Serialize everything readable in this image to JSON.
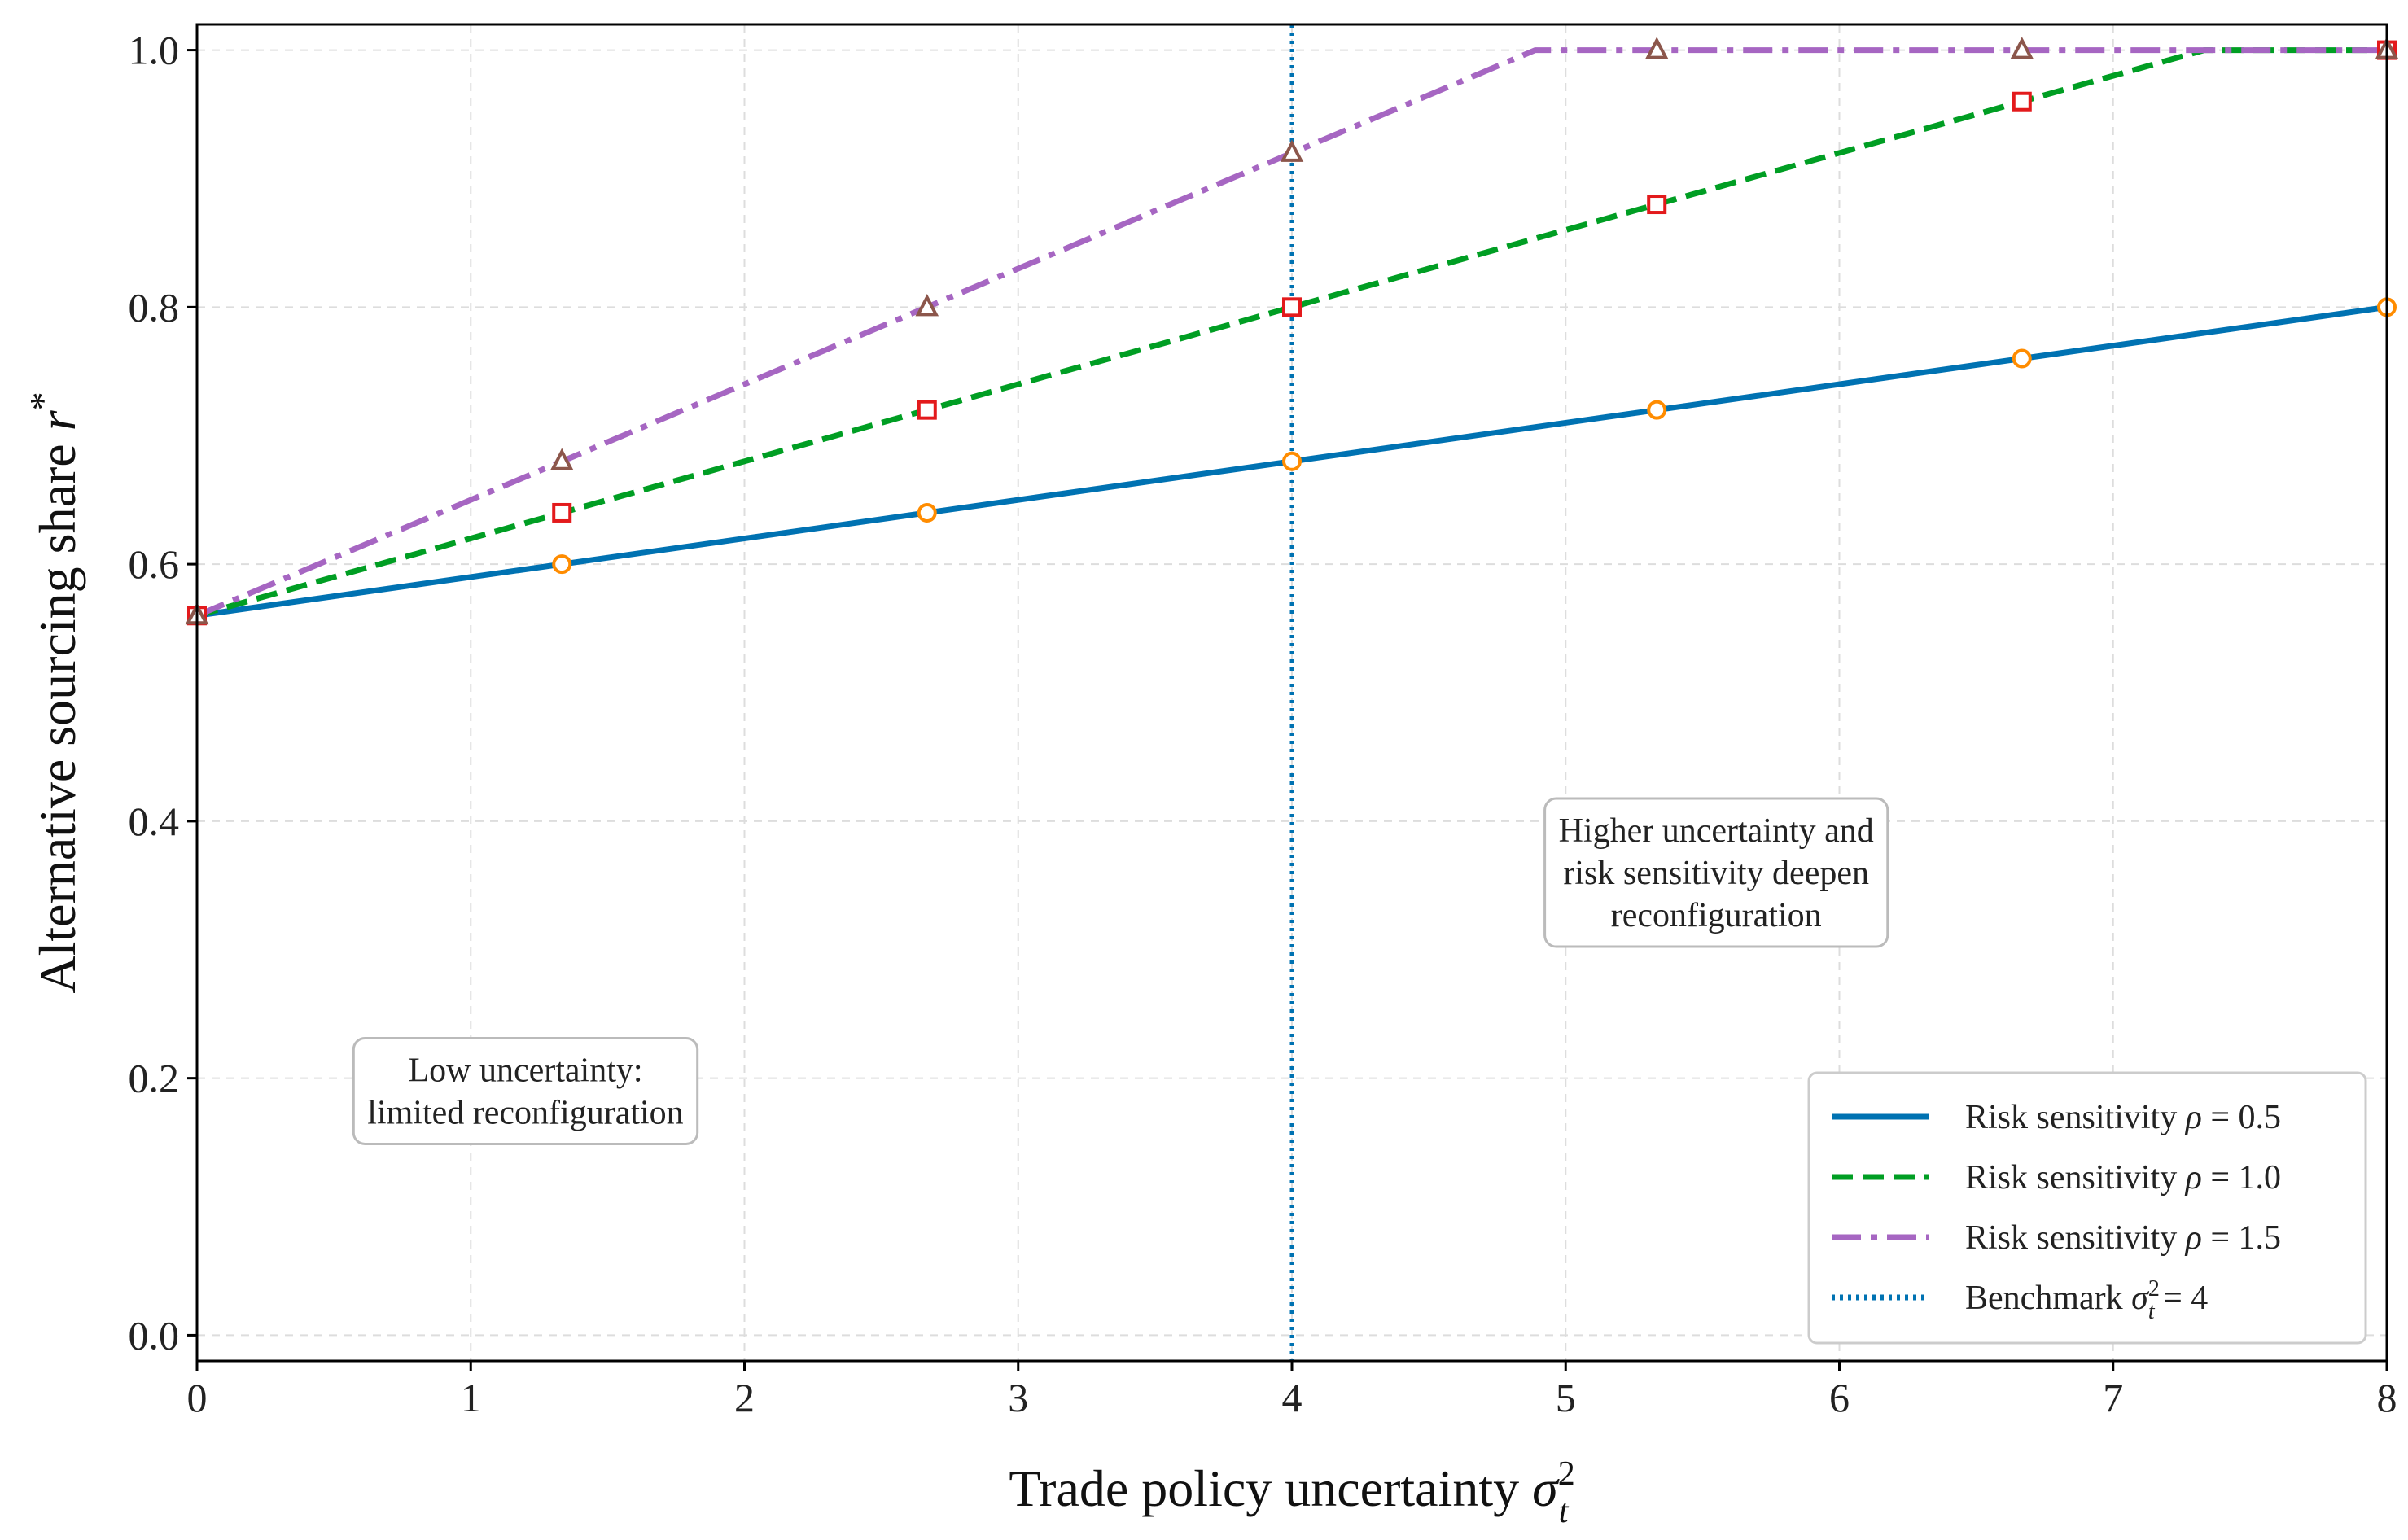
{
  "chart_data": {
    "type": "line",
    "xlabel": "Trade policy uncertainty",
    "xlabel_symbol": "σ",
    "xlabel_sup": "2",
    "xlabel_sub": "t",
    "ylabel": "Alternative sourcing share",
    "ylabel_symbol": "r",
    "ylabel_sup": "*",
    "xlim": [
      0,
      8
    ],
    "ylim": [
      -0.02,
      1.02
    ],
    "x_ticks": [
      0,
      1,
      2,
      3,
      4,
      5,
      6,
      7,
      8
    ],
    "y_ticks": [
      0.0,
      0.2,
      0.4,
      0.6,
      0.8,
      1.0
    ],
    "y_tick_labels": [
      "0.0",
      "0.2",
      "0.4",
      "0.6",
      "0.8",
      "1.0"
    ],
    "grid": true,
    "legend_position": "bottom-right",
    "series": [
      {
        "name": "Risk sensitivity ρ = 0.5",
        "label_text": "Risk sensitivity ",
        "label_symbol": "ρ",
        "label_value": " = 0.5",
        "color": "#0072b2",
        "dash": "solid",
        "marker": "circle",
        "marker_edge": "#ff8c00",
        "line_points": {
          "x": [
            0,
            8
          ],
          "y": [
            0.56,
            0.8
          ]
        },
        "markers": {
          "x": [
            0,
            1.333,
            2.667,
            4,
            5.333,
            6.667,
            8
          ],
          "y": [
            0.56,
            0.6,
            0.64,
            0.68,
            0.72,
            0.76,
            0.8
          ]
        }
      },
      {
        "name": "Risk sensitivity ρ = 1.0",
        "label_text": "Risk sensitivity ",
        "label_symbol": "ρ",
        "label_value": " = 1.0",
        "color": "#009e23",
        "dash": "dashed",
        "marker": "square",
        "marker_edge": "#e31a1c",
        "line_points": {
          "x": [
            0,
            7.333,
            8
          ],
          "y": [
            0.56,
            1.0,
            1.0
          ]
        },
        "markers": {
          "x": [
            0,
            1.333,
            2.667,
            4,
            5.333,
            6.667,
            8
          ],
          "y": [
            0.56,
            0.64,
            0.72,
            0.8,
            0.88,
            0.96,
            1.0
          ]
        }
      },
      {
        "name": "Risk sensitivity ρ = 1.5",
        "label_text": "Risk sensitivity ",
        "label_symbol": "ρ",
        "label_value": " = 1.5",
        "color": "#a666c2",
        "dash": "dashdot",
        "marker": "triangle",
        "marker_edge": "#8c564b",
        "line_points": {
          "x": [
            0,
            4.889,
            8
          ],
          "y": [
            0.56,
            1.0,
            1.0
          ]
        },
        "markers": {
          "x": [
            0,
            1.333,
            2.667,
            4,
            5.333,
            6.667,
            8
          ],
          "y": [
            0.56,
            0.68,
            0.8,
            0.92,
            1.0,
            1.0,
            1.0
          ]
        }
      }
    ],
    "benchmark": {
      "x": 4,
      "label_text": "Benchmark ",
      "label_symbol": "σ",
      "label_sup": "2",
      "label_sub": "t",
      "label_value": " = 4",
      "color": "#0072b2",
      "dash": "dotted"
    },
    "annotations": [
      {
        "lines": [
          "Low uncertainty:",
          "limited reconfiguration"
        ],
        "x": 1.2,
        "y": 0.19
      },
      {
        "lines": [
          "Higher uncertainty and",
          "risk sensitivity deepen",
          "reconfiguration"
        ],
        "x": 5.55,
        "y": 0.36
      }
    ]
  }
}
